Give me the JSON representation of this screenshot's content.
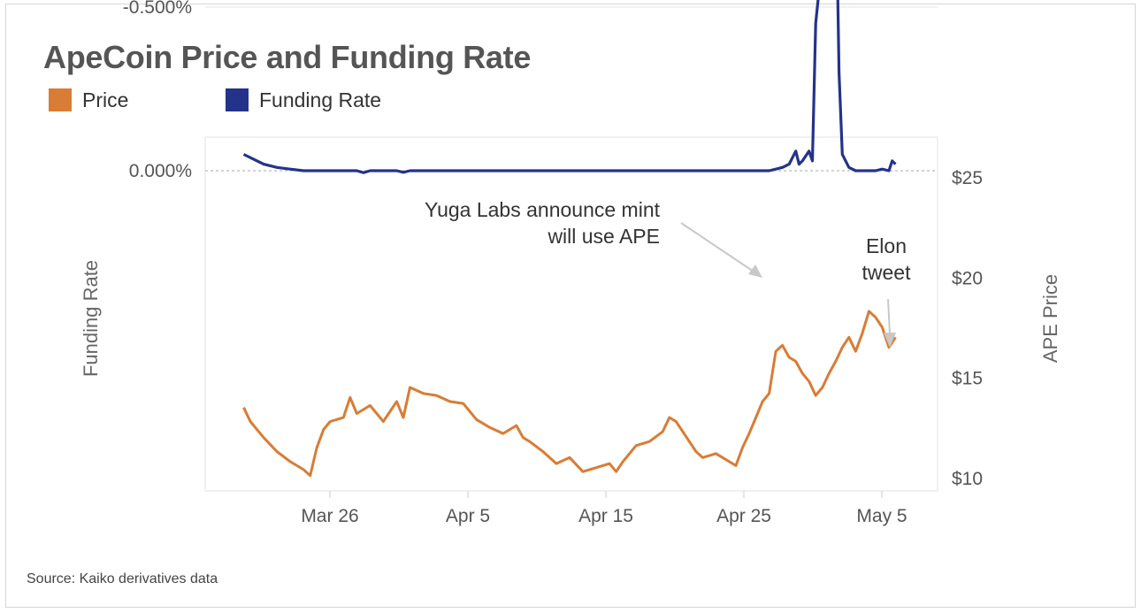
{
  "title": "ApeCoin Price and Funding Rate",
  "legend": [
    {
      "label": "Price",
      "color": "#d97c35"
    },
    {
      "label": "Funding Rate",
      "color": "#24338a"
    }
  ],
  "source": "Source: Kaiko derivatives data",
  "chart_data": {
    "type": "line",
    "title": "ApeCoin Price and Funding Rate",
    "x_ticks": [
      "Mar 26",
      "Apr 5",
      "Apr 15",
      "Apr 25",
      "May 5"
    ],
    "x_range": [
      "2022-03-17",
      "2022-05-06"
    ],
    "y_left": {
      "label": "Funding Rate",
      "ticks": [
        "0.000%",
        "-0.500%"
      ],
      "range_pct": [
        -0.98,
        0.02
      ]
    },
    "y_right": {
      "label": "APE Price",
      "ticks": [
        "$25",
        "$20",
        "$15",
        "$10"
      ],
      "range": [
        9.2,
        26.0
      ]
    },
    "grid": true,
    "legend_position": "top-left",
    "annotations": [
      {
        "lines": [
          "Yuga Labs announce mint",
          "will use APE"
        ],
        "date": "2022-04-27"
      },
      {
        "lines": [
          "Elon",
          "tweet"
        ],
        "date": "2022-05-05"
      }
    ],
    "series": [
      {
        "name": "Price",
        "axis": "right",
        "color": "#d97c35",
        "points": [
          [
            "2022-03-17T12:00",
            13.5
          ],
          [
            "2022-03-18",
            12.8
          ],
          [
            "2022-03-19",
            12.0
          ],
          [
            "2022-03-20",
            11.3
          ],
          [
            "2022-03-21",
            10.8
          ],
          [
            "2022-03-22",
            10.4
          ],
          [
            "2022-03-22T12:00",
            10.1
          ],
          [
            "2022-03-23",
            11.5
          ],
          [
            "2022-03-23T12:00",
            12.4
          ],
          [
            "2022-03-24",
            12.8
          ],
          [
            "2022-03-25",
            13.0
          ],
          [
            "2022-03-25T12:00",
            14.0
          ],
          [
            "2022-03-26",
            13.2
          ],
          [
            "2022-03-27",
            13.6
          ],
          [
            "2022-03-28",
            12.8
          ],
          [
            "2022-03-29",
            13.8
          ],
          [
            "2022-03-29T12:00",
            13.0
          ],
          [
            "2022-03-30",
            14.5
          ],
          [
            "2022-03-31",
            14.2
          ],
          [
            "2022-04-01",
            14.1
          ],
          [
            "2022-04-02",
            13.8
          ],
          [
            "2022-04-03",
            13.7
          ],
          [
            "2022-04-04",
            12.9
          ],
          [
            "2022-04-05",
            12.5
          ],
          [
            "2022-04-06",
            12.2
          ],
          [
            "2022-04-07",
            12.6
          ],
          [
            "2022-04-07T12:00",
            12.0
          ],
          [
            "2022-04-08",
            11.8
          ],
          [
            "2022-04-09",
            11.3
          ],
          [
            "2022-04-10",
            10.7
          ],
          [
            "2022-04-11",
            11.0
          ],
          [
            "2022-04-12",
            10.3
          ],
          [
            "2022-04-13",
            10.5
          ],
          [
            "2022-04-14",
            10.7
          ],
          [
            "2022-04-14T12:00",
            10.3
          ],
          [
            "2022-04-15",
            10.8
          ],
          [
            "2022-04-16",
            11.6
          ],
          [
            "2022-04-17",
            11.8
          ],
          [
            "2022-04-18",
            12.3
          ],
          [
            "2022-04-18T12:00",
            13.0
          ],
          [
            "2022-04-19",
            12.8
          ],
          [
            "2022-04-20",
            11.8
          ],
          [
            "2022-04-20T12:00",
            11.3
          ],
          [
            "2022-04-21",
            11.0
          ],
          [
            "2022-04-22",
            11.2
          ],
          [
            "2022-04-22T12:00",
            11.0
          ],
          [
            "2022-04-23",
            10.8
          ],
          [
            "2022-04-23T12:00",
            10.6
          ],
          [
            "2022-04-24",
            11.5
          ],
          [
            "2022-04-24T12:00",
            12.2
          ],
          [
            "2022-04-25",
            13.0
          ],
          [
            "2022-04-25T12:00",
            13.8
          ],
          [
            "2022-04-26",
            14.2
          ],
          [
            "2022-04-26T12:00",
            16.3
          ],
          [
            "2022-04-27",
            16.6
          ],
          [
            "2022-04-27T12:00",
            16.0
          ],
          [
            "2022-04-28",
            15.8
          ],
          [
            "2022-04-28T12:00",
            15.2
          ],
          [
            "2022-04-29",
            14.8
          ],
          [
            "2022-04-29T12:00",
            14.1
          ],
          [
            "2022-04-30",
            14.5
          ],
          [
            "2022-04-30T12:00",
            15.2
          ],
          [
            "2022-05-01",
            15.8
          ],
          [
            "2022-05-01T12:00",
            16.5
          ],
          [
            "2022-05-02",
            17.0
          ],
          [
            "2022-05-02T12:00",
            16.3
          ],
          [
            "2022-05-03",
            17.2
          ],
          [
            "2022-05-03T12:00",
            18.3
          ],
          [
            "2022-05-04",
            18.0
          ],
          [
            "2022-05-04T12:00",
            17.5
          ],
          [
            "2022-05-05",
            16.5
          ],
          [
            "2022-05-05T12:00",
            17.0
          ]
        ]
      },
      {
        "name": "Funding Rate",
        "axis": "left",
        "color": "#24338a",
        "points_pct": []
      }
    ]
  }
}
